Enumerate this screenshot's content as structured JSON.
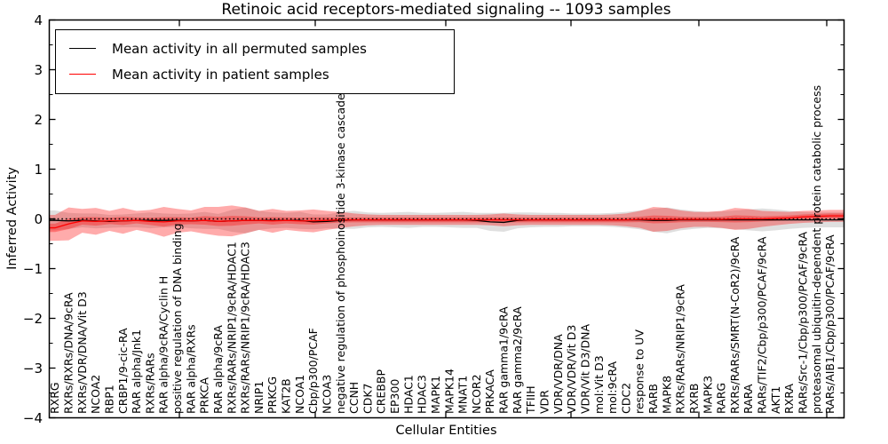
{
  "title": "Retinoic acid receptors-mediated signaling -- 1093 samples",
  "legend": {
    "items": [
      {
        "label": "Mean activity in all permuted samples",
        "color": "#000000"
      },
      {
        "label": "Mean activity in patient samples",
        "color": "#ff0000"
      }
    ],
    "position": "upper left"
  },
  "chart_data": {
    "type": "line",
    "title": "Retinoic acid receptors-mediated signaling -- 1093 samples",
    "xlabel": "Cellular Entities",
    "ylabel": "Inferred Activity",
    "ylim": [
      -4,
      4
    ],
    "yticks": [
      -4,
      -3,
      -2,
      -1,
      0,
      1,
      2,
      3,
      4
    ],
    "grid": false,
    "samples": 1093,
    "reference_line": {
      "y": 0,
      "style": "dotted",
      "color": "#000000"
    },
    "categories": [
      "RXRG",
      "RXRs/RXRs/DNA/9cRA",
      "RXRs/VDR/DNA/Vit D3",
      "NCOA2",
      "RBP1",
      "CRBP1/9-cic-RA",
      "RAR alpha/Jnk1",
      "RXRs/RARs",
      "RAR alpha/9cRA/Cyclin H",
      "positive regulation of DNA binding",
      "RAR alpha/RXRs",
      "PRKCA",
      "RAR alpha/9cRA",
      "RXRs/RARs/NRIP1/9cRA/HDAC1",
      "RXRs/RARs/NRIP1/9cRA/HDAC3",
      "NRIP1",
      "PRKCG",
      "KAT2B",
      "NCOA1",
      "Cbp/p300/PCAF",
      "NCOA3",
      "negative regulation of phosphoinositide 3-kinase cascade",
      "CCNH",
      "CDK7",
      "CREBBP",
      "EP300",
      "HDAC1",
      "HDAC3",
      "MAPK1",
      "MAPK14",
      "MNAT1",
      "NCOR2",
      "PRKACA",
      "RAR gamma1/9cRA",
      "RAR gamma2/9cRA",
      "TFIIH",
      "VDR",
      "VDR/VDR/DNA",
      "VDR/VDR/Vit D3",
      "VDR/Vit D3/DNA",
      "mol:Vit D3",
      "mol:9cRA",
      "CDC2",
      "response to UV",
      "RARB",
      "MAPK8",
      "RXRs/RARs/NRIP1/9cRA",
      "RXRB",
      "MAPK3",
      "RARG",
      "RXRs/RARs/SMRT(N-CoR2)/9cRA",
      "RARA",
      "RARs/TIF2/Cbp/p300/PCAF/9cRA",
      "AKT1",
      "RXRA",
      "RARs/Src-1/Cbp/p300/PCAF/9cRA",
      "proteasomal ubiquitin-dependent protein catabolic process",
      "RARs/AIB1/Cbp/p300/PCAF/9cRA"
    ],
    "series": [
      {
        "name": "Mean activity in all permuted samples",
        "color": "#000000",
        "band_color": "#bfbfbf",
        "values": [
          -0.03,
          -0.04,
          -0.03,
          -0.04,
          -0.05,
          -0.04,
          -0.03,
          -0.03,
          -0.03,
          -0.03,
          -0.04,
          -0.03,
          -0.05,
          -0.04,
          -0.03,
          -0.03,
          -0.03,
          -0.03,
          -0.03,
          -0.06,
          -0.05,
          -0.03,
          -0.02,
          -0.02,
          -0.02,
          -0.02,
          -0.02,
          -0.02,
          -0.02,
          -0.02,
          -0.02,
          -0.03,
          -0.06,
          -0.07,
          -0.03,
          -0.02,
          -0.02,
          -0.02,
          -0.02,
          -0.02,
          -0.02,
          -0.02,
          -0.02,
          -0.02,
          -0.03,
          -0.03,
          -0.02,
          -0.02,
          -0.02,
          -0.02,
          -0.02,
          -0.02,
          -0.02,
          -0.02,
          -0.02,
          -0.02,
          -0.02,
          -0.02
        ],
        "band": [
          0.2,
          0.16,
          0.14,
          0.15,
          0.13,
          0.13,
          0.14,
          0.16,
          0.14,
          0.13,
          0.15,
          0.17,
          0.15,
          0.22,
          0.26,
          0.19,
          0.16,
          0.15,
          0.17,
          0.15,
          0.14,
          0.17,
          0.18,
          0.15,
          0.14,
          0.15,
          0.16,
          0.14,
          0.14,
          0.15,
          0.16,
          0.15,
          0.18,
          0.19,
          0.16,
          0.15,
          0.14,
          0.14,
          0.13,
          0.13,
          0.13,
          0.14,
          0.16,
          0.19,
          0.23,
          0.26,
          0.21,
          0.18,
          0.16,
          0.17,
          0.19,
          0.21,
          0.23,
          0.21,
          0.18,
          0.16,
          0.15,
          0.15
        ]
      },
      {
        "name": "Mean activity in patient samples",
        "color": "#ff0000",
        "band_color": "#ff0000",
        "values": [
          -0.18,
          -0.1,
          -0.04,
          -0.05,
          -0.04,
          -0.04,
          -0.03,
          -0.05,
          -0.06,
          -0.04,
          -0.04,
          -0.03,
          -0.05,
          -0.04,
          -0.03,
          -0.03,
          -0.04,
          -0.03,
          -0.04,
          -0.04,
          -0.03,
          -0.02,
          -0.02,
          -0.02,
          -0.02,
          -0.02,
          -0.02,
          -0.02,
          -0.02,
          -0.02,
          -0.02,
          -0.02,
          -0.02,
          -0.02,
          -0.02,
          -0.02,
          -0.02,
          -0.02,
          -0.02,
          -0.02,
          -0.02,
          -0.02,
          -0.02,
          -0.01,
          -0.01,
          -0.01,
          -0.01,
          -0.01,
          -0.01,
          -0.01,
          0.0,
          0.0,
          0.0,
          0.01,
          0.02,
          0.04,
          0.05,
          0.06
        ],
        "band": [
          0.26,
          0.33,
          0.24,
          0.27,
          0.2,
          0.26,
          0.19,
          0.23,
          0.3,
          0.24,
          0.21,
          0.27,
          0.29,
          0.31,
          0.26,
          0.19,
          0.24,
          0.19,
          0.21,
          0.23,
          0.19,
          0.16,
          0.13,
          0.11,
          0.1,
          0.1,
          0.1,
          0.1,
          0.1,
          0.1,
          0.1,
          0.1,
          0.11,
          0.13,
          0.11,
          0.1,
          0.1,
          0.1,
          0.1,
          0.1,
          0.1,
          0.11,
          0.13,
          0.17,
          0.25,
          0.23,
          0.18,
          0.15,
          0.15,
          0.17,
          0.22,
          0.2,
          0.16,
          0.14,
          0.12,
          0.12,
          0.12,
          0.12
        ]
      }
    ]
  }
}
